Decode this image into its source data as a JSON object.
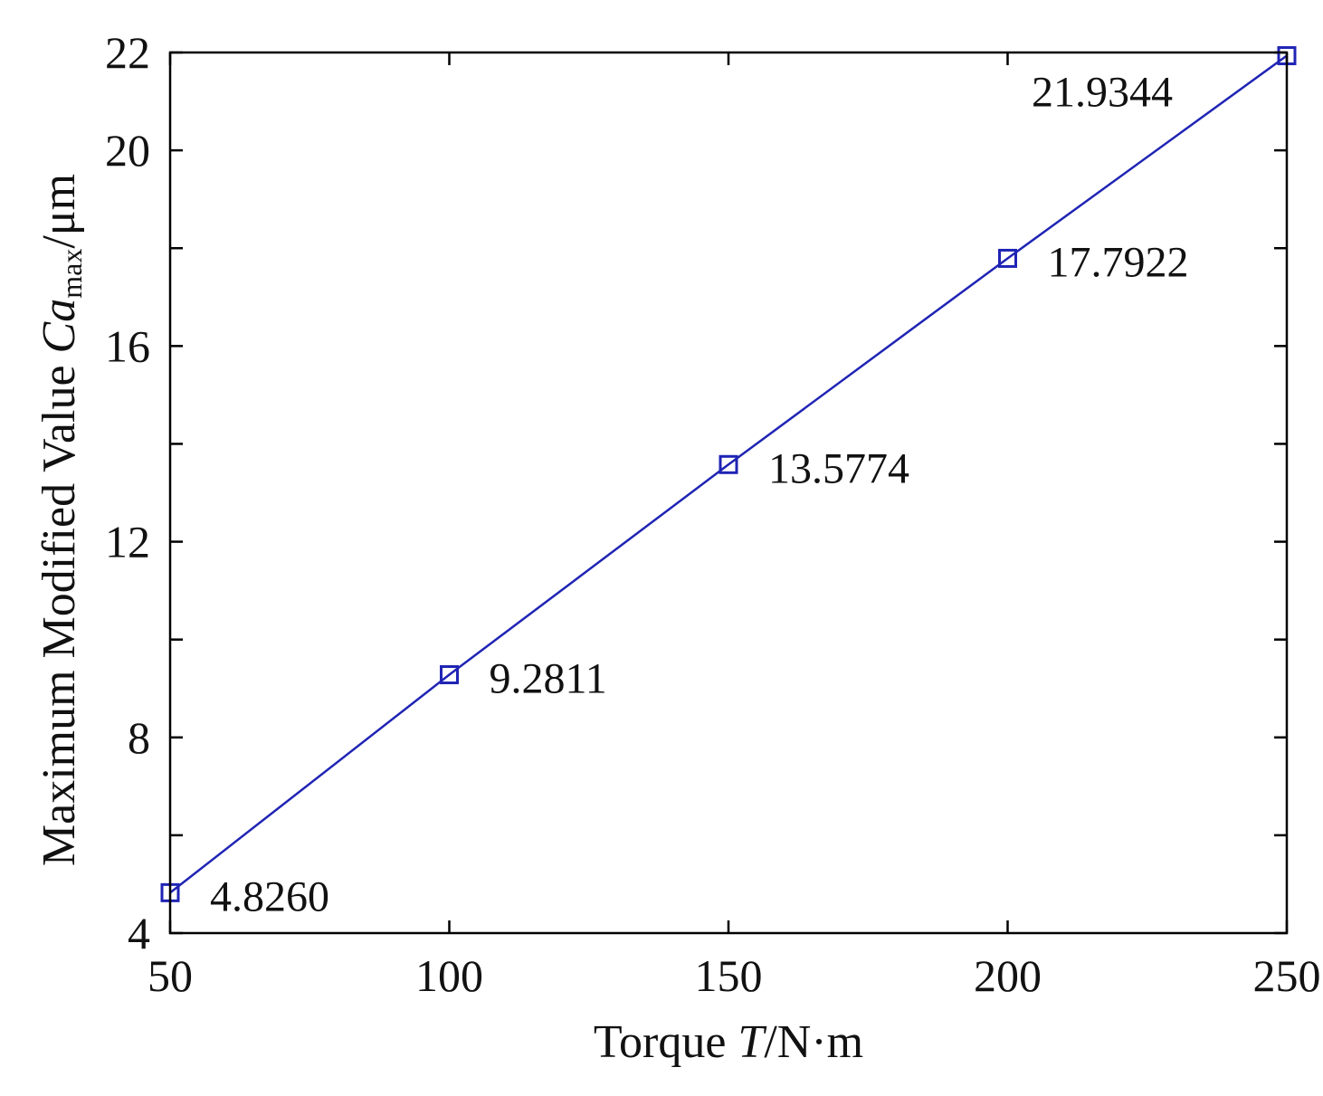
{
  "chart_data": {
    "type": "line",
    "x": [
      50,
      100,
      150,
      200,
      250
    ],
    "series": [
      {
        "values": [
          4.826,
          9.2811,
          13.5774,
          17.7922,
          21.9344
        ],
        "data_labels": [
          "4.8260",
          "9.2811",
          "13.5774",
          "17.7922",
          "21.9344"
        ],
        "marker": "square",
        "color": "#1f24b4"
      }
    ],
    "xlabel_parts": {
      "prefix": "Torque ",
      "symbol": "T",
      "suffix": "/N·m"
    },
    "ylabel_parts": {
      "prefix": "Maximum Modified Value ",
      "symbol": "Ca",
      "subscript": "max",
      "suffix": "/μm"
    },
    "xlim": [
      50,
      250
    ],
    "ylim": [
      4,
      22
    ],
    "xticks": [
      50,
      100,
      150,
      200,
      250
    ],
    "xtick_labels": [
      "50",
      "100",
      "150",
      "200",
      "250"
    ],
    "yticks": [
      4,
      6,
      8,
      10,
      12,
      14,
      16,
      18,
      20,
      22
    ],
    "ytick_labels": [
      "4",
      "8",
      "12",
      "16",
      "20",
      "22"
    ],
    "ytick_labeled_values": [
      4,
      8,
      12,
      16,
      20,
      22
    ],
    "grid": false,
    "legend": "none"
  }
}
